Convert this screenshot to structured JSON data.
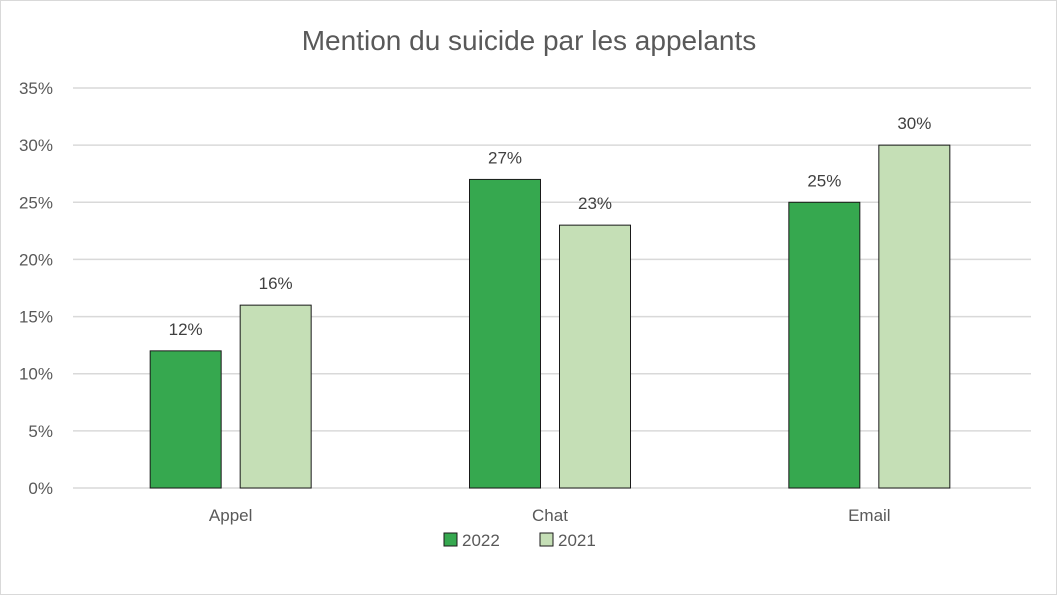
{
  "chart_data": {
    "type": "bar",
    "title": "Mention du suicide par les appelants",
    "categories": [
      "Appel",
      "Chat",
      "Email"
    ],
    "series": [
      {
        "name": "2022",
        "values": [
          12,
          27,
          25
        ],
        "labels": [
          "12%",
          "27%",
          "25%"
        ],
        "color": "#36a84f"
      },
      {
        "name": "2021",
        "values": [
          16,
          23,
          30
        ],
        "labels": [
          "16%",
          "23%",
          "30%"
        ],
        "color": "#c5dfb6"
      }
    ],
    "y_ticks": [
      "0%",
      "5%",
      "10%",
      "15%",
      "20%",
      "25%",
      "30%",
      "35%"
    ],
    "ylim": [
      0,
      35
    ],
    "grid": true,
    "legend_position": "bottom"
  }
}
